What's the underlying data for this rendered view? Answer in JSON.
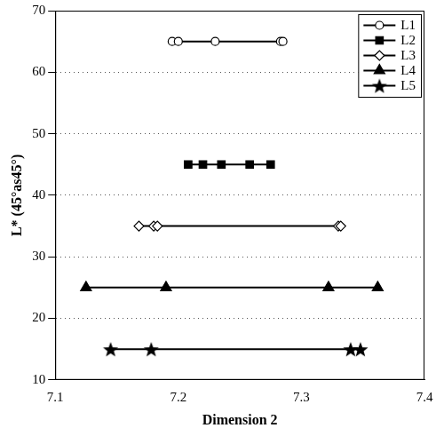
{
  "chart_data": {
    "type": "scatter",
    "x_label": "Dimension 2",
    "y_label": "L* (45°as45°)",
    "xlim": [
      7.1,
      7.4
    ],
    "xticks": [
      7.1,
      7.2,
      7.3,
      7.4
    ],
    "ylim": [
      10,
      70
    ],
    "yticks": [
      10,
      20,
      30,
      40,
      50,
      60,
      70
    ],
    "grid": "y",
    "legend": "upper right",
    "series": [
      {
        "name": "L1",
        "color": "#000000",
        "marker": "circle_open",
        "line_style": "solid",
        "x": [
          7.195,
          7.2,
          7.23,
          7.283,
          7.285
        ],
        "values": [
          65,
          65,
          65,
          65,
          65
        ]
      },
      {
        "name": "L2",
        "color": "#000000",
        "marker": "square",
        "line_style": "solid",
        "x": [
          7.208,
          7.22,
          7.235,
          7.258,
          7.275
        ],
        "values": [
          45,
          45,
          45,
          45,
          45
        ]
      },
      {
        "name": "L3",
        "color": "#000000",
        "marker": "diamond_open",
        "line_style": "solid",
        "x": [
          7.168,
          7.18,
          7.183,
          7.33,
          7.332
        ],
        "values": [
          35,
          35,
          35,
          35,
          35
        ]
      },
      {
        "name": "L4",
        "color": "#000000",
        "marker": "triangle",
        "line_style": "solid",
        "x": [
          7.125,
          7.19,
          7.322,
          7.362
        ],
        "values": [
          25,
          25,
          25,
          25
        ]
      },
      {
        "name": "L5",
        "color": "#000000",
        "marker": "star",
        "line_style": "solid",
        "x": [
          7.145,
          7.178,
          7.34,
          7.348
        ],
        "values": [
          15,
          15,
          15,
          15
        ]
      }
    ]
  }
}
